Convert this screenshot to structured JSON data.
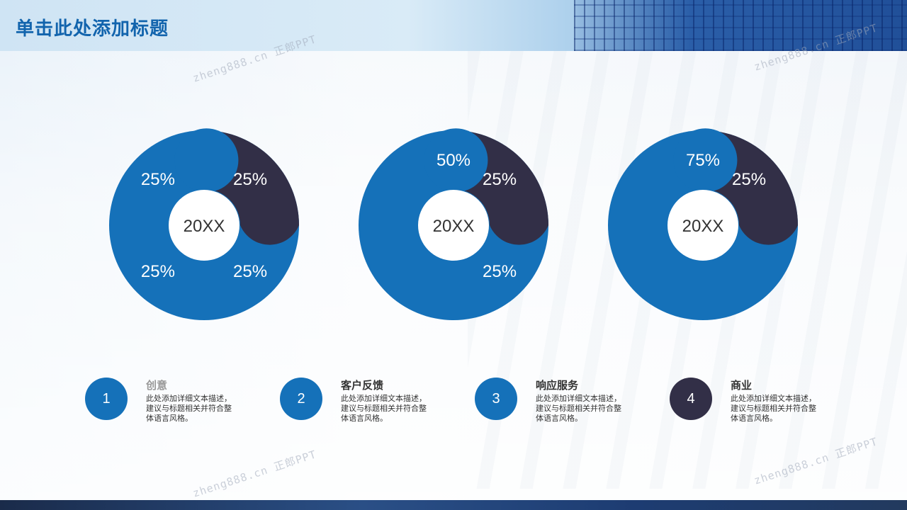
{
  "header": {
    "title": "单击此处添加标题"
  },
  "watermark": {
    "text": "zheng888.cn 正郎PPT"
  },
  "colors": {
    "blue": "#1571b9",
    "dark": "#322f47",
    "white": "#ffffff"
  },
  "donuts": [
    {
      "center_label": "20XX",
      "segments": [
        {
          "value": 25,
          "label": "25%",
          "color": "dark"
        },
        {
          "value": 25,
          "label": "25%",
          "color": "blue"
        },
        {
          "value": 25,
          "label": "25%",
          "color": "blue"
        },
        {
          "value": 25,
          "label": "25%",
          "color": "blue"
        }
      ]
    },
    {
      "center_label": "20XX",
      "segments": [
        {
          "value": 25,
          "label": "25%",
          "color": "dark"
        },
        {
          "value": 25,
          "label": "25%",
          "color": "blue"
        },
        {
          "value": 50,
          "label": "50%",
          "color": "blue"
        }
      ]
    },
    {
      "center_label": "20XX",
      "segments": [
        {
          "value": 25,
          "label": "25%",
          "color": "dark"
        },
        {
          "value": 75,
          "label": "75%",
          "color": "blue"
        }
      ]
    }
  ],
  "steps": [
    {
      "number": "1",
      "title": "创意",
      "desc": "此处添加详细文本描述，建议与标题相关并符合整体语言风格。",
      "color": "#1571b9",
      "title_color": "#999999"
    },
    {
      "number": "2",
      "title": "客户反馈",
      "desc": "此处添加详细文本描述，建议与标题相关并符合整体语言风格。",
      "color": "#1571b9",
      "title_color": "#333333"
    },
    {
      "number": "3",
      "title": "响应服务",
      "desc": "此处添加详细文本描述，建议与标题相关并符合整体语言风格。",
      "color": "#1571b9",
      "title_color": "#333333"
    },
    {
      "number": "4",
      "title": "商业",
      "desc": "此处添加详细文本描述，建议与标题相关并符合整体语言风格。",
      "color": "#322f47",
      "title_color": "#333333"
    }
  ]
}
